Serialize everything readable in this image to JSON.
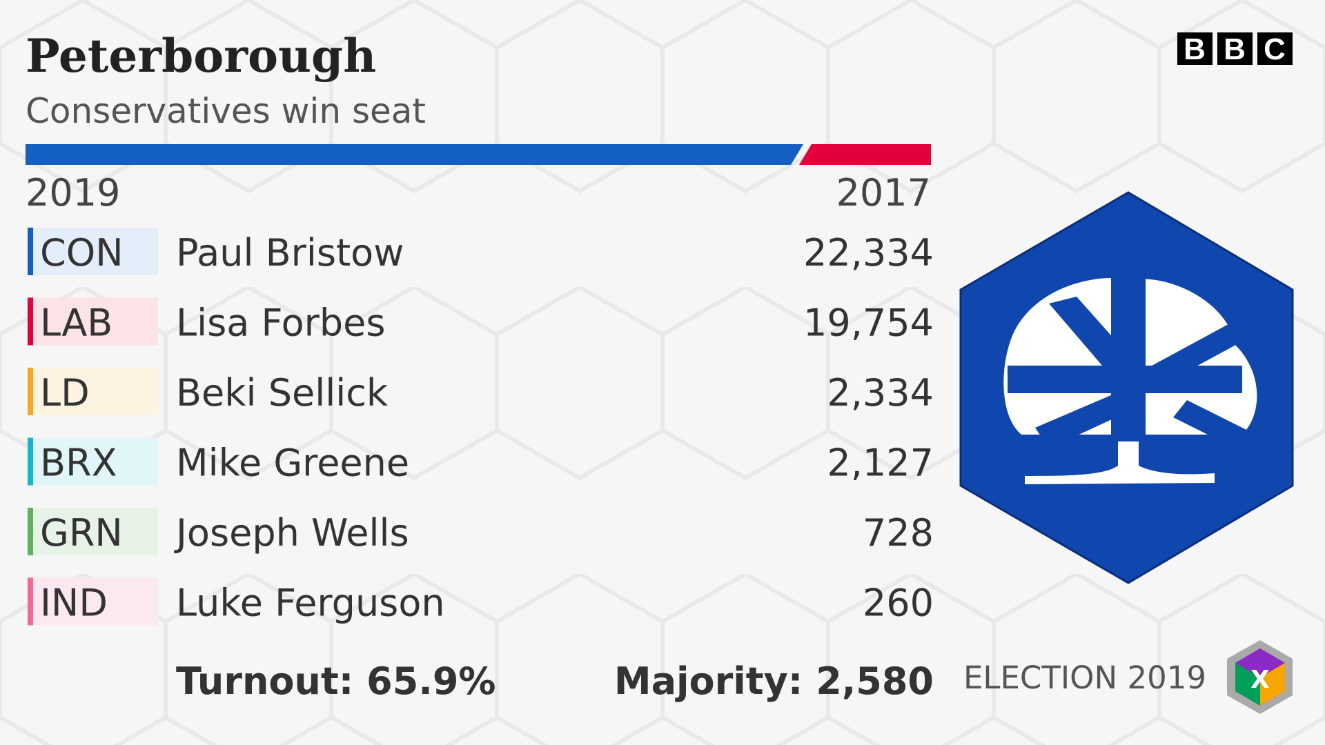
{
  "header": {
    "title": "Peterborough",
    "subtitle": "Conservatives win seat"
  },
  "bbc_logo": [
    "B",
    "B",
    "C"
  ],
  "years": {
    "left": "2019",
    "right": "2017"
  },
  "results": {
    "rows": [
      {
        "party": "CON",
        "candidate": "Paul Bristow",
        "votes": "22,334"
      },
      {
        "party": "LAB",
        "candidate": "Lisa Forbes",
        "votes": "19,754"
      },
      {
        "party": "LD",
        "candidate": "Beki Sellick",
        "votes": "2,334"
      },
      {
        "party": "BRX",
        "candidate": "Mike Greene",
        "votes": "2,127"
      },
      {
        "party": "GRN",
        "candidate": "Joseph Wells",
        "votes": "728"
      },
      {
        "party": "IND",
        "candidate": "Luke Ferguson",
        "votes": "260"
      }
    ]
  },
  "footer": {
    "turnout": "Turnout: 65.9%",
    "majority": "Majority: 2,580",
    "brand": "ELECTION 2019",
    "cube_letter": "X"
  }
}
